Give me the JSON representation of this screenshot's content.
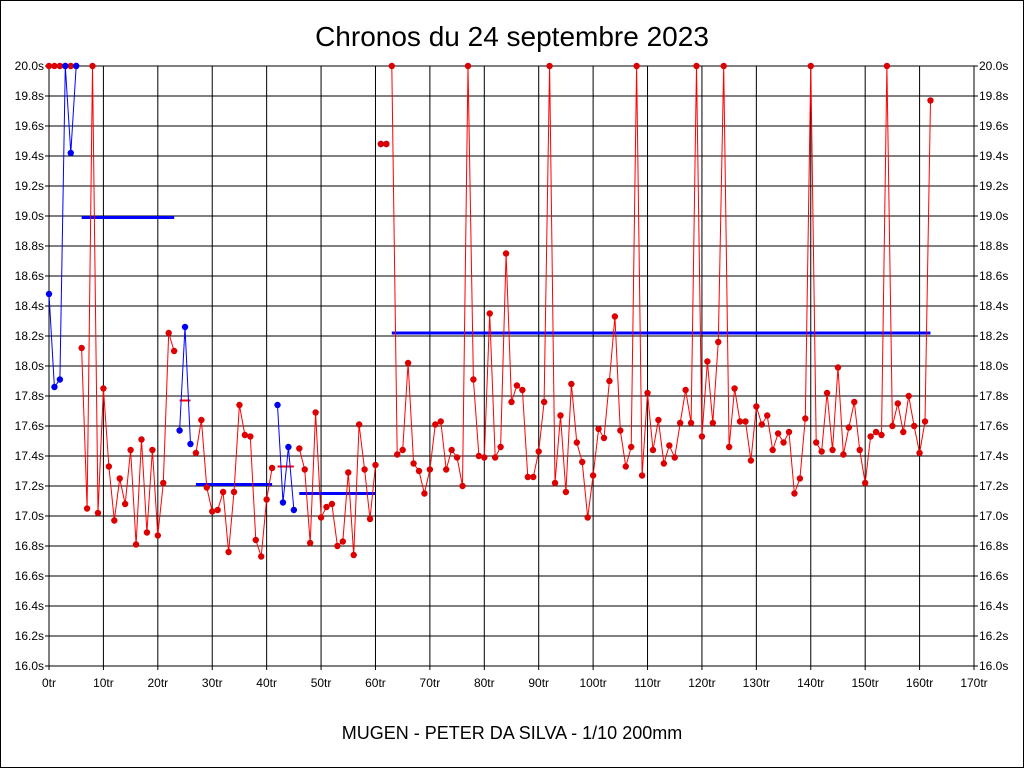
{
  "chart_data": {
    "type": "line",
    "title": "Chronos du 24 septembre 2023",
    "xlabel": "MUGEN - PETER DA SILVA - 1/10 200mm",
    "ylabel": "",
    "xlim": [
      0,
      170
    ],
    "ylim": [
      16.0,
      20.0
    ],
    "grid": true,
    "x_ticks": [
      0,
      10,
      20,
      30,
      40,
      50,
      60,
      70,
      80,
      90,
      100,
      110,
      120,
      130,
      140,
      150,
      160,
      170
    ],
    "x_tick_labels": [
      "0tr",
      "10tr",
      "20tr",
      "30tr",
      "40tr",
      "50tr",
      "60tr",
      "70tr",
      "80tr",
      "90tr",
      "100tr",
      "110tr",
      "120tr",
      "130tr",
      "140tr",
      "150tr",
      "160tr",
      "170tr"
    ],
    "y_ticks": [
      16.0,
      16.2,
      16.4,
      16.6,
      16.8,
      17.0,
      17.2,
      17.4,
      17.6,
      17.8,
      18.0,
      18.2,
      18.4,
      18.6,
      18.8,
      19.0,
      19.2,
      19.4,
      19.6,
      19.8,
      20.0
    ],
    "y_tick_labels": [
      "16.0s",
      "16.2s",
      "16.4s",
      "16.6s",
      "16.8s",
      "17.0s",
      "17.2s",
      "17.4s",
      "17.6s",
      "17.8s",
      "18.0s",
      "18.2s",
      "18.4s",
      "18.6s",
      "18.8s",
      "19.0s",
      "19.2s",
      "19.4s",
      "19.6s",
      "19.8s",
      "20.0s"
    ],
    "colors": {
      "red_series": "#ff0000",
      "blue_series": "#0000ff",
      "red_marker": "#dd0000",
      "blue_marker": "#0000ee",
      "average_line": "#0000ff",
      "average_tick": "#ff0000"
    },
    "series": [
      {
        "color": "red",
        "points": [
          [
            0,
            20.0
          ],
          [
            1,
            20.0
          ],
          [
            2,
            20.0
          ],
          [
            3,
            20.0
          ],
          [
            4,
            20.0
          ],
          [
            5,
            20.0
          ]
        ]
      },
      {
        "color": "blue",
        "points": [
          [
            0,
            18.48
          ],
          [
            1,
            17.86
          ],
          [
            2,
            17.91
          ],
          [
            3,
            20.0
          ],
          [
            4,
            19.42
          ],
          [
            5,
            20.0
          ]
        ]
      },
      {
        "color": "red",
        "points": [
          [
            6,
            18.12
          ],
          [
            7,
            17.05
          ],
          [
            8,
            20.0
          ],
          [
            9,
            17.02
          ],
          [
            10,
            17.85
          ],
          [
            11,
            17.33
          ],
          [
            12,
            16.97
          ],
          [
            13,
            17.25
          ],
          [
            14,
            17.08
          ],
          [
            15,
            17.44
          ],
          [
            16,
            16.81
          ],
          [
            17,
            17.51
          ],
          [
            18,
            16.89
          ],
          [
            19,
            17.44
          ],
          [
            20,
            16.87
          ],
          [
            21,
            17.22
          ],
          [
            22,
            18.22
          ],
          [
            23,
            18.1
          ]
        ]
      },
      {
        "color": "blue",
        "points": [
          [
            24,
            17.57
          ],
          [
            25,
            18.26
          ],
          [
            26,
            17.48
          ]
        ]
      },
      {
        "color": "red",
        "points": [
          [
            27,
            17.42
          ],
          [
            28,
            17.64
          ],
          [
            29,
            17.19
          ],
          [
            30,
            17.03
          ],
          [
            31,
            17.04
          ],
          [
            32,
            17.16
          ],
          [
            33,
            16.76
          ],
          [
            34,
            17.16
          ],
          [
            35,
            17.74
          ],
          [
            36,
            17.54
          ],
          [
            37,
            17.53
          ],
          [
            38,
            16.84
          ],
          [
            39,
            16.73
          ],
          [
            40,
            17.11
          ],
          [
            41,
            17.32
          ]
        ]
      },
      {
        "color": "blue",
        "points": [
          [
            42,
            17.74
          ],
          [
            43,
            17.09
          ],
          [
            44,
            17.46
          ],
          [
            45,
            17.04
          ]
        ]
      },
      {
        "color": "red",
        "points": [
          [
            46,
            17.45
          ],
          [
            47,
            17.31
          ],
          [
            48,
            16.82
          ],
          [
            49,
            17.69
          ],
          [
            50,
            16.99
          ],
          [
            51,
            17.06
          ],
          [
            52,
            17.08
          ],
          [
            53,
            16.8
          ],
          [
            54,
            16.83
          ],
          [
            55,
            17.29
          ],
          [
            56,
            16.74
          ],
          [
            57,
            17.61
          ],
          [
            58,
            17.31
          ],
          [
            59,
            16.98
          ],
          [
            60,
            17.34
          ]
        ]
      },
      {
        "color": "blue",
        "points": [
          [
            61,
            19.48
          ],
          [
            62,
            19.48
          ]
        ]
      },
      {
        "color": "red",
        "points": [
          [
            61,
            19.48
          ],
          [
            62,
            19.48
          ]
        ]
      },
      {
        "color": "red",
        "points": [
          [
            63,
            20.0
          ],
          [
            64,
            17.41
          ],
          [
            65,
            17.44
          ],
          [
            66,
            18.02
          ],
          [
            67,
            17.35
          ],
          [
            68,
            17.3
          ],
          [
            69,
            17.15
          ],
          [
            70,
            17.31
          ],
          [
            71,
            17.61
          ],
          [
            72,
            17.63
          ],
          [
            73,
            17.31
          ],
          [
            74,
            17.44
          ],
          [
            75,
            17.39
          ],
          [
            76,
            17.2
          ],
          [
            77,
            20.0
          ],
          [
            78,
            17.91
          ],
          [
            79,
            17.4
          ],
          [
            80,
            17.39
          ],
          [
            81,
            18.35
          ],
          [
            82,
            17.39
          ],
          [
            83,
            17.46
          ],
          [
            84,
            18.75
          ],
          [
            85,
            17.76
          ],
          [
            86,
            17.87
          ],
          [
            87,
            17.84
          ],
          [
            88,
            17.26
          ],
          [
            89,
            17.26
          ],
          [
            90,
            17.43
          ],
          [
            91,
            17.76
          ],
          [
            92,
            20.0
          ],
          [
            93,
            17.22
          ],
          [
            94,
            17.67
          ],
          [
            95,
            17.16
          ],
          [
            96,
            17.88
          ],
          [
            97,
            17.49
          ],
          [
            98,
            17.36
          ],
          [
            99,
            16.99
          ],
          [
            100,
            17.27
          ],
          [
            101,
            17.58
          ],
          [
            102,
            17.52
          ],
          [
            103,
            17.9
          ],
          [
            104,
            18.33
          ],
          [
            105,
            17.57
          ],
          [
            106,
            17.33
          ],
          [
            107,
            17.46
          ],
          [
            108,
            20.0
          ],
          [
            109,
            17.27
          ],
          [
            110,
            17.82
          ],
          [
            111,
            17.44
          ],
          [
            112,
            17.64
          ],
          [
            113,
            17.35
          ],
          [
            114,
            17.47
          ],
          [
            115,
            17.39
          ],
          [
            116,
            17.62
          ],
          [
            117,
            17.84
          ],
          [
            118,
            17.62
          ],
          [
            119,
            20.0
          ],
          [
            120,
            17.53
          ],
          [
            121,
            18.03
          ],
          [
            122,
            17.62
          ],
          [
            123,
            18.16
          ],
          [
            124,
            20.0
          ],
          [
            125,
            17.46
          ],
          [
            126,
            17.85
          ],
          [
            127,
            17.63
          ],
          [
            128,
            17.63
          ],
          [
            129,
            17.37
          ],
          [
            130,
            17.73
          ],
          [
            131,
            17.61
          ],
          [
            132,
            17.67
          ],
          [
            133,
            17.44
          ],
          [
            134,
            17.55
          ],
          [
            135,
            17.49
          ],
          [
            136,
            17.56
          ],
          [
            137,
            17.15
          ],
          [
            138,
            17.25
          ],
          [
            139,
            17.65
          ],
          [
            140,
            20.0
          ],
          [
            141,
            17.49
          ],
          [
            142,
            17.43
          ],
          [
            143,
            17.82
          ],
          [
            144,
            17.44
          ],
          [
            145,
            17.99
          ],
          [
            146,
            17.41
          ],
          [
            147,
            17.59
          ],
          [
            148,
            17.76
          ],
          [
            149,
            17.44
          ],
          [
            150,
            17.22
          ],
          [
            151,
            17.53
          ],
          [
            152,
            17.56
          ],
          [
            153,
            17.54
          ],
          [
            154,
            20.0
          ],
          [
            155,
            17.6
          ],
          [
            156,
            17.75
          ],
          [
            157,
            17.56
          ],
          [
            158,
            17.8
          ],
          [
            159,
            17.6
          ],
          [
            160,
            17.42
          ],
          [
            161,
            17.63
          ],
          [
            162,
            19.77
          ]
        ]
      }
    ],
    "average_lines": [
      {
        "x_start": 6,
        "x_end": 23,
        "y": 18.99
      },
      {
        "x_start": 27,
        "x_end": 41,
        "y": 17.21
      },
      {
        "x_start": 46,
        "x_end": 60,
        "y": 17.15
      },
      {
        "x_start": 63,
        "x_end": 162,
        "y": 18.22
      }
    ],
    "average_ticks": [
      {
        "x_start": 24,
        "x_end": 26,
        "y": 17.77
      },
      {
        "x_start": 42,
        "x_end": 45,
        "y": 17.33
      }
    ]
  }
}
